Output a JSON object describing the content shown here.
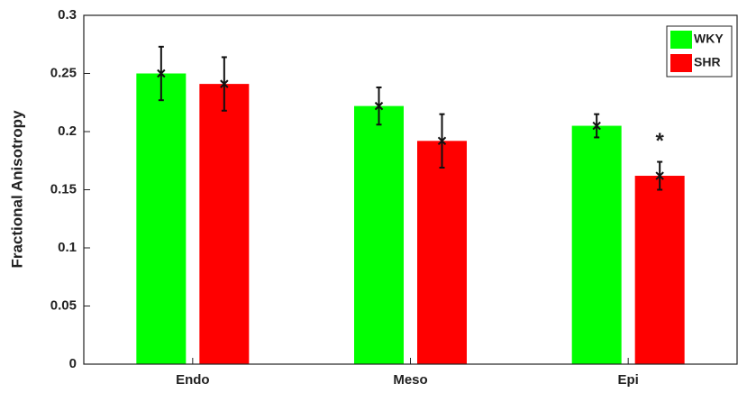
{
  "chart_data": {
    "type": "bar",
    "y_label": "Fractional Anisotropy",
    "categories": [
      "Endo",
      "Meso",
      "Epi"
    ],
    "series": [
      {
        "name": "WKY",
        "color": "#00ff00",
        "values": [
          0.25,
          0.222,
          0.205
        ],
        "errors": [
          0.023,
          0.016,
          0.01
        ]
      },
      {
        "name": "SHR",
        "color": "#ff0000",
        "values": [
          0.241,
          0.192,
          0.162
        ],
        "errors": [
          0.023,
          0.023,
          0.012
        ]
      }
    ],
    "annotations": [
      {
        "text": "*",
        "series": 1,
        "category": 2
      }
    ],
    "ylim": [
      0,
      0.3
    ],
    "yticks": [
      0,
      0.05,
      0.1,
      0.15,
      0.2,
      0.25,
      0.3
    ],
    "grid": false,
    "legend": "top-right"
  }
}
